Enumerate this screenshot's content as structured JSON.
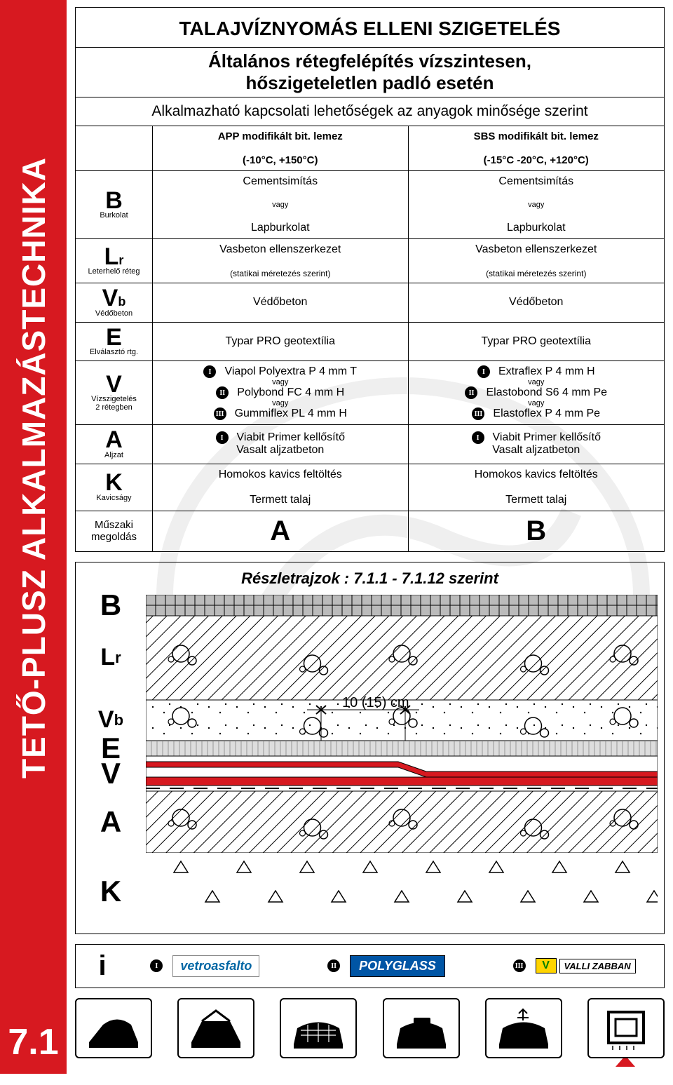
{
  "sidebar": {
    "vertical_text": "TETŐ-PLUSZ ALKALMAZÁSTECHNIKA",
    "section_number": "7.1"
  },
  "colors": {
    "brand_red": "#d71920",
    "poly_blue": "#0055a5",
    "vz_yellow": "#ffd400"
  },
  "table": {
    "title": "TALAJVÍZNYOMÁS ELLENI SZIGETELÉS",
    "subtitle_line1": "Általános rétegfelépítés vízszintesen,",
    "subtitle_line2": "hőszigeteletlen padló esetén",
    "subnote": "Alkalmazható kapcsolati lehetőségek az anyagok minősége szerint",
    "col_a_head1": "APP modifikált bit. lemez",
    "col_a_head2": "(-10°C, +150°C)",
    "col_b_head1": "SBS modifikált bit. lemez",
    "col_b_head2": "(-15°C -20°C, +120°C)",
    "rows": [
      {
        "code": "B",
        "sub": "",
        "label": "Burkolat",
        "a": [
          "Cementsimítás",
          "vagy",
          "Lapburkolat"
        ],
        "b": [
          "Cementsimítás",
          "vagy",
          "Lapburkolat"
        ]
      },
      {
        "code": "L",
        "sub": "r",
        "label": "Leterhelő réteg",
        "a": [
          "Vasbeton ellenszerkezet",
          "(statikai méretezés szerint)"
        ],
        "b": [
          "Vasbeton ellenszerkezet",
          "(statikai méretezés szerint)"
        ]
      },
      {
        "code": "V",
        "sub": "b",
        "label": "Védőbeton",
        "a": [
          "Védőbeton"
        ],
        "b": [
          "Védőbeton"
        ]
      },
      {
        "code": "E",
        "sub": "",
        "label": "Elválasztó rtg.",
        "a": [
          "Typar PRO geotextília"
        ],
        "b": [
          "Typar PRO geotextília"
        ]
      },
      {
        "code": "V",
        "sub": "",
        "label": "Vízszigetelés",
        "label2": "2 rétegben",
        "a_opts": [
          {
            "n": "I",
            "t": "Viapol Polyextra P 4 mm T"
          },
          {
            "vagy": "vagy"
          },
          {
            "n": "II",
            "t": "Polybond FC 4 mm H"
          },
          {
            "vagy": "vagy"
          },
          {
            "n": "III",
            "t": "Gummiflex PL 4 mm H"
          }
        ],
        "b_opts": [
          {
            "n": "I",
            "t": "Extraflex P 4 mm H"
          },
          {
            "vagy": "vagy"
          },
          {
            "n": "II",
            "t": "Elastobond S6 4 mm Pe"
          },
          {
            "vagy": "vagy"
          },
          {
            "n": "III",
            "t": "Elastoflex P 4 mm Pe"
          }
        ]
      },
      {
        "code": "A",
        "sub": "",
        "label": "Aljzat",
        "a_opts": [
          {
            "n": "I",
            "t": "Viabit Primer kellősítő"
          },
          {
            "t": "Vasalt aljzatbeton"
          }
        ],
        "b_opts": [
          {
            "n": "I",
            "t": "Viabit Primer kellősítő"
          },
          {
            "t": "Vasalt aljzatbeton"
          }
        ]
      },
      {
        "code": "K",
        "sub": "",
        "label": "Kavicságy",
        "a": [
          "Homokos kavics feltöltés",
          "Termett talaj"
        ],
        "b": [
          "Homokos kavics feltöltés",
          "Termett talaj"
        ]
      }
    ],
    "foot_label": "Műszaki megoldás",
    "foot_a": "A",
    "foot_b": "B"
  },
  "diagram": {
    "title": "Részletrajzok : 7.1.1 - 7.1.12 szerint",
    "dim_label": "10 (15) cm",
    "layers": [
      "B",
      "Lr",
      "Vb",
      "E",
      "V",
      "A",
      "K"
    ],
    "layer_heights": {
      "B": 30,
      "Lr": 120,
      "Vb": 58,
      "E": 22,
      "V": 50,
      "A": 88,
      "K": 110
    },
    "membrane_color": "#d71920"
  },
  "info": {
    "brands": [
      {
        "n": "I",
        "name": "vetroasfalto",
        "style": "vetro"
      },
      {
        "n": "II",
        "name": "POLYGLASS",
        "style": "poly"
      },
      {
        "n": "III",
        "name": "VALLI ZABBAN",
        "style": "vz"
      }
    ]
  },
  "icons": {
    "count": 6,
    "last_open": true
  }
}
